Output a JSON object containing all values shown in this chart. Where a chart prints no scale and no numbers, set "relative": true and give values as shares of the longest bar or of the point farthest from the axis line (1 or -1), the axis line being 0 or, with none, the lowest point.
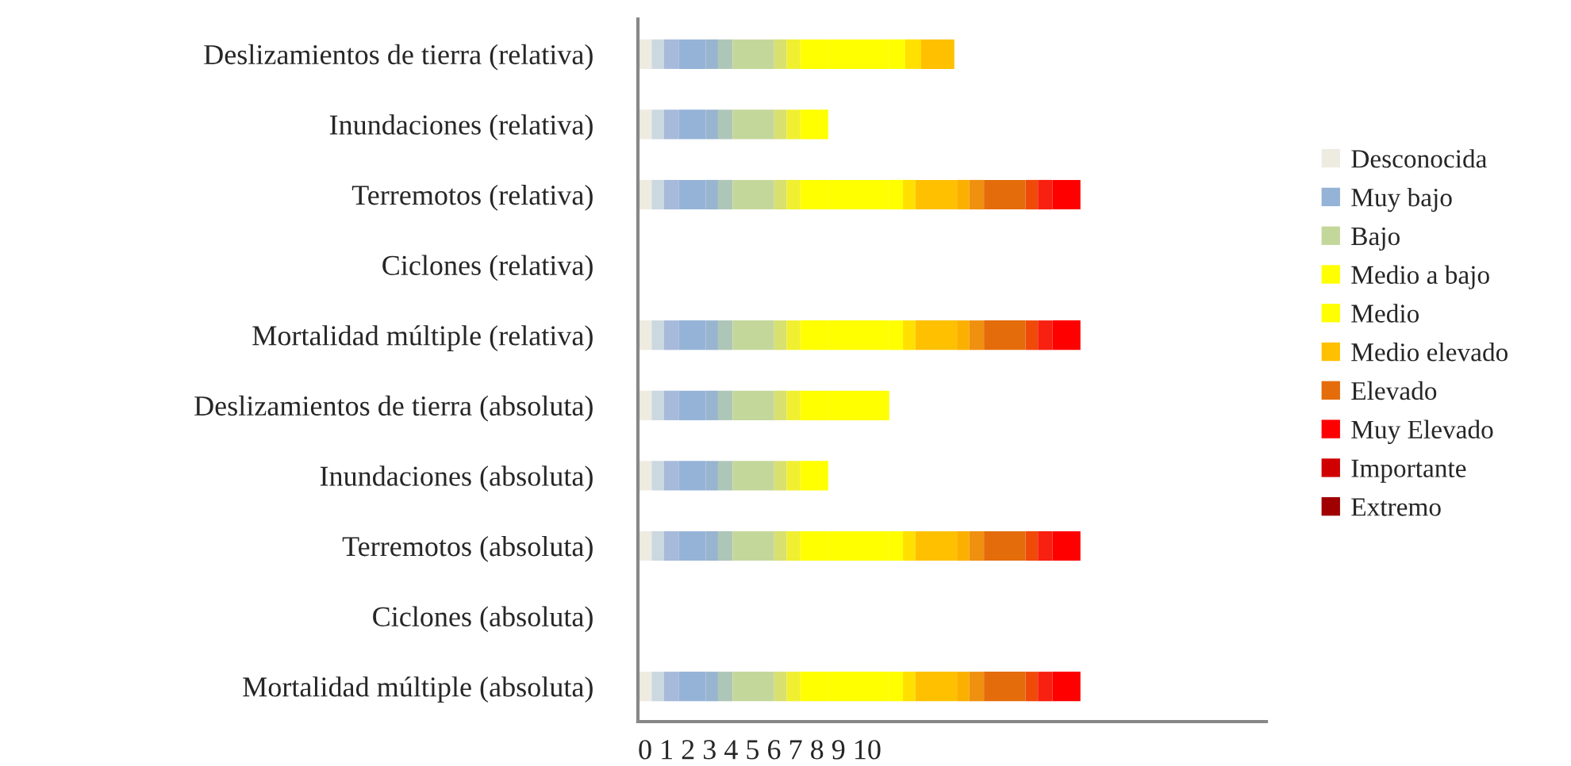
{
  "chart_data": {
    "type": "bar",
    "orientation": "horizontal",
    "stacked": true,
    "relative": true,
    "categories": [
      "Deslizamientos de tierra (relativa)",
      "Inundaciones (relativa)",
      "Terremotos (relativa)",
      "Ciclones (relativa)",
      "Mortalidad múltiple (relativa)",
      "Deslizamientos de tierra (absoluta)",
      "Inundaciones (absoluta)",
      "Terremotos (absoluta)",
      "Ciclones (absoluta)",
      "Mortalidad múltiple (absoluta)"
    ],
    "series": [
      {
        "name": "Desconocida",
        "color": "#eeece1",
        "values": [
          0.031,
          0.031,
          0.031,
          null,
          0.031,
          0.031,
          0.031,
          0.031,
          null,
          0.031
        ]
      },
      {
        "color": "#ccd8e0",
        "values": [
          0.028,
          0.028,
          0.028,
          null,
          0.028,
          0.028,
          0.028,
          0.028,
          null,
          0.028
        ]
      },
      {
        "color": "#a7badc",
        "values": [
          0.033,
          0.033,
          0.033,
          null,
          0.033,
          0.033,
          0.033,
          0.033,
          null,
          0.033
        ]
      },
      {
        "name": "Muy bajo",
        "color": "#95b3d7",
        "values": [
          0.061,
          0.061,
          0.061,
          null,
          0.061,
          0.061,
          0.061,
          0.061,
          null,
          0.061
        ]
      },
      {
        "color": "#98b4cf",
        "values": [
          0.028,
          0.028,
          0.028,
          null,
          0.028,
          0.028,
          0.028,
          0.028,
          null,
          0.028
        ]
      },
      {
        "color": "#aec6b8",
        "values": [
          0.033,
          0.033,
          0.033,
          null,
          0.033,
          0.033,
          0.033,
          0.033,
          null,
          0.033
        ]
      },
      {
        "name": "Bajo",
        "color": "#c4d79b",
        "values": [
          0.094,
          0.094,
          0.094,
          null,
          0.094,
          0.094,
          0.094,
          0.094,
          null,
          0.094
        ]
      },
      {
        "color": "#d8e070",
        "values": [
          0.028,
          0.028,
          0.028,
          null,
          0.028,
          0.028,
          0.028,
          0.028,
          null,
          0.028
        ]
      },
      {
        "color": "#f0f030",
        "values": [
          0.031,
          0.031,
          0.031,
          null,
          0.031,
          0.031,
          0.031,
          0.031,
          null,
          0.031
        ]
      },
      {
        "name": "Medio a bajo",
        "color": "#ffff00",
        "values": [
          0.063,
          0.063,
          0.063,
          null,
          0.063,
          0.063,
          0.063,
          0.063,
          null,
          0.063
        ]
      },
      {
        "name": "Medio",
        "color": "#ffff00",
        "values": [
          0.138,
          null,
          0.138,
          null,
          0.138,
          0.138,
          null,
          0.138,
          null,
          0.138
        ]
      },
      {
        "color": "#ffff00",
        "values": [
          0.036,
          null,
          0.031,
          null,
          0.031,
          null,
          null,
          0.031,
          null,
          0.031
        ]
      },
      {
        "color": "#ffe000",
        "values": [
          0.036,
          null,
          0.028,
          null,
          0.028,
          null,
          null,
          0.028,
          null,
          0.028
        ]
      },
      {
        "name": "Medio elevado",
        "color": "#ffc000",
        "values": [
          0.075,
          null,
          0.094,
          null,
          0.094,
          null,
          null,
          0.094,
          null,
          0.094
        ]
      },
      {
        "color": "#fbb000",
        "values": [
          null,
          null,
          0.028,
          null,
          0.028,
          null,
          null,
          0.028,
          null,
          0.028
        ]
      },
      {
        "color": "#f09010",
        "values": [
          null,
          null,
          0.033,
          null,
          0.033,
          null,
          null,
          0.033,
          null,
          0.033
        ]
      },
      {
        "name": "Elevado",
        "color": "#e46c0a",
        "values": [
          null,
          null,
          0.094,
          null,
          0.094,
          null,
          null,
          0.094,
          null,
          0.094
        ]
      },
      {
        "color": "#f04a0a",
        "values": [
          null,
          null,
          0.028,
          null,
          0.028,
          null,
          null,
          0.028,
          null,
          0.028
        ]
      },
      {
        "color": "#f82010",
        "values": [
          null,
          null,
          0.033,
          null,
          0.033,
          null,
          null,
          0.033,
          null,
          0.033
        ]
      },
      {
        "name": "Muy Elevado",
        "color": "#ff0000",
        "values": [
          null,
          null,
          0.063,
          null,
          0.063,
          null,
          null,
          0.063,
          null,
          0.063
        ]
      },
      {
        "name": "Importante",
        "color": "#d00000",
        "values": [
          null,
          null,
          null,
          null,
          null,
          null,
          null,
          null,
          null,
          null
        ]
      },
      {
        "name": "Extremo",
        "color": "#a00000",
        "values": [
          null,
          null,
          null,
          null,
          null,
          null,
          null,
          null,
          null,
          null
        ]
      }
    ],
    "annotations": [
      "0 1 2 3 4 5 6 7 8 9 10"
    ],
    "legend": "right"
  }
}
